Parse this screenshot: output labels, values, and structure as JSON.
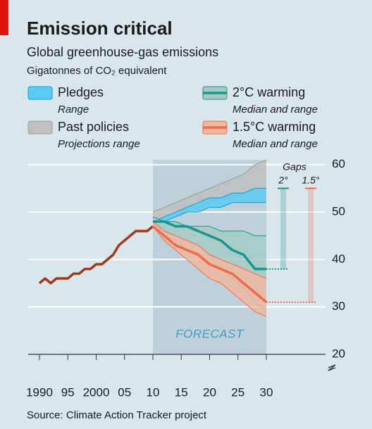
{
  "chart_data": {
    "type": "line",
    "title": "Emission critical",
    "subtitle": "Global greenhouse-gas emissions",
    "y_label": "Gigatonnes of CO₂ equivalent",
    "source": "Source: Climate Action Tracker project",
    "forecast_label": "FORECAST",
    "forecast_range": [
      2010,
      2030
    ],
    "gaps_title": "Gaps",
    "xlim": [
      1990,
      2030
    ],
    "ylim": [
      20,
      61
    ],
    "xticks": [
      {
        "value": 1990,
        "label": "1990"
      },
      {
        "value": 1995,
        "label": "95"
      },
      {
        "value": 2000,
        "label": "2000"
      },
      {
        "value": 2005,
        "label": "05"
      },
      {
        "value": 2010,
        "label": "10"
      },
      {
        "value": 2015,
        "label": "15"
      },
      {
        "value": 2020,
        "label": "20"
      },
      {
        "value": 2025,
        "label": "25"
      },
      {
        "value": 2030,
        "label": "30"
      }
    ],
    "yticks": [
      20,
      30,
      40,
      50,
      60
    ],
    "grid": true,
    "series": [
      {
        "color": "#a0391b",
        "x": [
          1990,
          1991,
          1992,
          1993,
          1994,
          1995,
          1996,
          1997,
          1998,
          1999,
          2000,
          2001,
          2002,
          2003,
          2004,
          2005,
          2006,
          2007,
          2008,
          2009,
          2010
        ],
        "values": [
          35,
          36,
          35,
          36,
          36,
          36,
          37,
          37,
          38,
          38,
          39,
          39,
          40,
          41,
          43,
          44,
          45,
          46,
          46,
          46,
          47
        ]
      },
      {
        "name": "Past policies",
        "description": "Projections range",
        "color": "#9a9a9a",
        "fill": "#bfbfbf",
        "x": [
          2010,
          2012,
          2014,
          2016,
          2018,
          2020,
          2022,
          2024,
          2026,
          2028,
          2030
        ],
        "lower": [
          48,
          48,
          49,
          50,
          51,
          52,
          53,
          53,
          54,
          55,
          55
        ],
        "upper": [
          50,
          51,
          52,
          53,
          54,
          55,
          56,
          57,
          58,
          60,
          61
        ]
      },
      {
        "name": "Pledges",
        "description": "Range",
        "color": "#00a0e0",
        "fill": "#5cccf2",
        "x": [
          2010,
          2012,
          2014,
          2016,
          2018,
          2020,
          2022,
          2024,
          2026,
          2028,
          2030
        ],
        "lower": [
          48,
          48,
          49,
          50,
          50,
          51,
          51,
          52,
          52,
          52,
          52
        ],
        "upper": [
          48,
          49,
          50,
          51,
          52,
          53,
          53,
          54,
          54,
          55,
          55
        ]
      },
      {
        "name": "2°C warming",
        "description": "Median and range",
        "color": "#1a958c",
        "fill": "#a6cbc6",
        "x": [
          2010,
          2012,
          2014,
          2016,
          2018,
          2020,
          2022,
          2024,
          2026,
          2028,
          2030
        ],
        "values": [
          48,
          48,
          47,
          47,
          46,
          45,
          44,
          42,
          41,
          38,
          38
        ],
        "lower": [
          47,
          45,
          44,
          42,
          41,
          39,
          38,
          36,
          34,
          31,
          29
        ],
        "upper": [
          49,
          48,
          48,
          47,
          47,
          47,
          46,
          46,
          46,
          45,
          45
        ]
      },
      {
        "name": "1.5°C warming",
        "description": "Median and range",
        "color": "#f26a4a",
        "fill": "#f0b8a2",
        "x": [
          2010,
          2012,
          2014,
          2016,
          2018,
          2020,
          2022,
          2024,
          2026,
          2028,
          2030
        ],
        "values": [
          47,
          45,
          43,
          42,
          41,
          39,
          38,
          37,
          35,
          33,
          31
        ],
        "lower": [
          47,
          44,
          42,
          40,
          38,
          36,
          35,
          33,
          31,
          29,
          28
        ],
        "upper": [
          48,
          46,
          45,
          44,
          43,
          41,
          40,
          39,
          38,
          37,
          36
        ]
      }
    ],
    "gaps": [
      {
        "label": "2°",
        "from": 55,
        "to": 38,
        "color": "#1a958c"
      },
      {
        "label": "1.5°",
        "from": 55,
        "to": 31,
        "color": "#f26a4a"
      }
    ]
  }
}
